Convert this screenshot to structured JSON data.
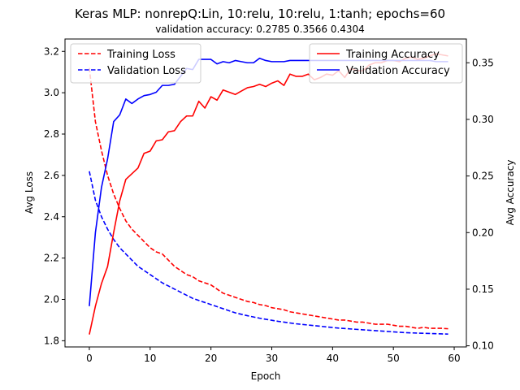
{
  "chart_data": {
    "type": "line",
    "title": "Keras MLP: nonrepQ:Lin, 10:relu, 10:relu, 1:tanh; epochs=60",
    "subtitle": "validation accuracy:  0.2785  0.3566  0.4304",
    "xlabel": "Epoch",
    "ylabel_left": "Avg Loss",
    "ylabel_right": "Avg Accuracy",
    "xlim": [
      -4,
      62
    ],
    "ylim_left": [
      1.77,
      3.26
    ],
    "ylim_right": [
      0.099,
      0.371
    ],
    "xticks": [
      0,
      10,
      20,
      30,
      40,
      50,
      60
    ],
    "yticks_left": [
      1.8,
      2.0,
      2.2,
      2.4,
      2.6,
      2.8,
      3.0,
      3.2
    ],
    "yticks_right": [
      0.1,
      0.15,
      0.2,
      0.25,
      0.3,
      0.35
    ],
    "ytick_labels_left": [
      "1.8",
      "2.0",
      "2.2",
      "2.4",
      "2.6",
      "2.8",
      "3.0",
      "3.2"
    ],
    "ytick_labels_right": [
      "0.10",
      "0.15",
      "0.20",
      "0.25",
      "0.30",
      "0.35"
    ],
    "grid": false,
    "legend_left_placement": "upper-left",
    "legend_right_placement": "upper-right",
    "x": [
      0,
      1,
      2,
      3,
      4,
      5,
      6,
      7,
      8,
      9,
      10,
      11,
      12,
      13,
      14,
      15,
      16,
      17,
      18,
      19,
      20,
      21,
      22,
      23,
      24,
      25,
      26,
      27,
      28,
      29,
      30,
      31,
      32,
      33,
      34,
      35,
      36,
      37,
      38,
      39,
      40,
      41,
      42,
      43,
      44,
      45,
      46,
      47,
      48,
      49,
      50,
      51,
      52,
      53,
      54,
      55,
      56,
      57,
      58,
      59
    ],
    "series": [
      {
        "name": "Training Loss",
        "axis": "left",
        "color": "#ff0000",
        "style": "dashed",
        "values": [
          3.12,
          2.86,
          2.72,
          2.6,
          2.51,
          2.44,
          2.38,
          2.34,
          2.31,
          2.28,
          2.25,
          2.23,
          2.22,
          2.19,
          2.16,
          2.14,
          2.12,
          2.11,
          2.09,
          2.08,
          2.07,
          2.05,
          2.03,
          2.02,
          2.01,
          2.0,
          1.99,
          1.985,
          1.975,
          1.97,
          1.96,
          1.955,
          1.95,
          1.94,
          1.935,
          1.93,
          1.925,
          1.92,
          1.915,
          1.91,
          1.905,
          1.9,
          1.9,
          1.895,
          1.89,
          1.89,
          1.885,
          1.88,
          1.88,
          1.88,
          1.875,
          1.87,
          1.87,
          1.865,
          1.86,
          1.865,
          1.86,
          1.86,
          1.86,
          1.858
        ]
      },
      {
        "name": "Validation Loss",
        "axis": "left",
        "color": "#0000ff",
        "style": "dashed",
        "values": [
          2.62,
          2.48,
          2.4,
          2.34,
          2.29,
          2.25,
          2.22,
          2.19,
          2.16,
          2.14,
          2.12,
          2.1,
          2.08,
          2.065,
          2.05,
          2.035,
          2.02,
          2.005,
          1.995,
          1.985,
          1.975,
          1.965,
          1.955,
          1.945,
          1.935,
          1.928,
          1.921,
          1.915,
          1.909,
          1.904,
          1.899,
          1.894,
          1.89,
          1.886,
          1.882,
          1.879,
          1.876,
          1.873,
          1.87,
          1.867,
          1.864,
          1.861,
          1.859,
          1.857,
          1.855,
          1.853,
          1.851,
          1.849,
          1.847,
          1.845,
          1.843,
          1.841,
          1.839,
          1.838,
          1.837,
          1.836,
          1.835,
          1.834,
          1.833,
          1.832
        ]
      },
      {
        "name": "Training Accuracy",
        "axis": "right",
        "color": "#ff0000",
        "style": "solid",
        "values": [
          0.11,
          0.135,
          0.155,
          0.17,
          0.2,
          0.228,
          0.247,
          0.252,
          0.257,
          0.27,
          0.272,
          0.281,
          0.282,
          0.289,
          0.29,
          0.298,
          0.303,
          0.303,
          0.316,
          0.31,
          0.32,
          0.317,
          0.326,
          0.324,
          0.322,
          0.325,
          0.328,
          0.329,
          0.331,
          0.329,
          0.332,
          0.334,
          0.33,
          0.34,
          0.338,
          0.338,
          0.34,
          0.335,
          0.337,
          0.34,
          0.339,
          0.343,
          0.337,
          0.345,
          0.343,
          0.343,
          0.348,
          0.35,
          0.35,
          0.352,
          0.352,
          0.351,
          0.354,
          0.355,
          0.353,
          0.354,
          0.356,
          0.358,
          0.357,
          0.356
        ]
      },
      {
        "name": "Validation Accuracy",
        "axis": "right",
        "color": "#0000ff",
        "style": "solid",
        "values": [
          0.135,
          0.2,
          0.24,
          0.265,
          0.298,
          0.304,
          0.318,
          0.314,
          0.318,
          0.321,
          0.322,
          0.324,
          0.33,
          0.33,
          0.331,
          0.338,
          0.345,
          0.344,
          0.353,
          0.353,
          0.353,
          0.349,
          0.351,
          0.35,
          0.352,
          0.351,
          0.35,
          0.35,
          0.354,
          0.352,
          0.351,
          0.351,
          0.351,
          0.352,
          0.352,
          0.352,
          0.352,
          0.352,
          0.352,
          0.352,
          0.352,
          0.352,
          0.352,
          0.352,
          0.352,
          0.352,
          0.352,
          0.352,
          0.352,
          0.352,
          0.352,
          0.352,
          0.352,
          0.352,
          0.352,
          0.352,
          0.352,
          0.351,
          0.351,
          0.351
        ]
      }
    ]
  }
}
